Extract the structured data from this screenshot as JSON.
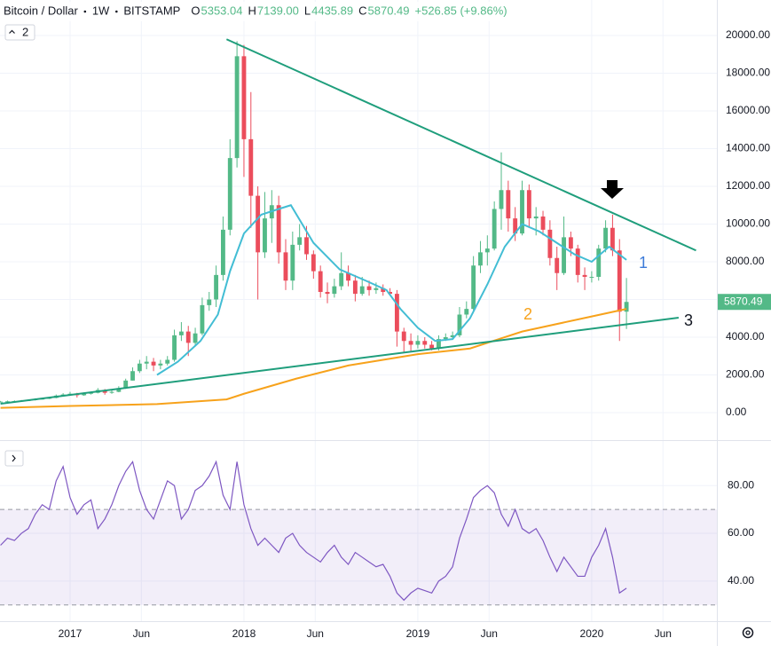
{
  "chart_data": {
    "type": "candlestick",
    "title": "Bitcoin / Dollar",
    "interval": "1W",
    "exchange": "BITSTAMP",
    "ohlc": [
      {
        "label": "O",
        "value": "5353.04"
      },
      {
        "label": "H",
        "value": "7139.00"
      },
      {
        "label": "L",
        "value": "4435.89"
      },
      {
        "label": "C",
        "value": "5870.49"
      }
    ],
    "change": "+526.85 (+9.86%)",
    "indicator_button": "2",
    "annotations": [
      "1",
      "2",
      "3"
    ],
    "up_color": "#53b987",
    "down_color": "#eb4d5c",
    "xlim": [
      2016.597,
      2020.72
    ],
    "xticks": [
      {
        "value": 2017,
        "label": "2017"
      },
      {
        "value": 2017.41,
        "label": "Jun"
      },
      {
        "value": 2018,
        "label": "2018"
      },
      {
        "value": 2018.41,
        "label": "Jun"
      },
      {
        "value": 2019,
        "label": "2019"
      },
      {
        "value": 2019.41,
        "label": "Jun"
      },
      {
        "value": 2020,
        "label": "2020"
      },
      {
        "value": 2020.41,
        "label": "Jun"
      }
    ],
    "ylim": [
      -1412,
      21882
    ],
    "yticks": [
      {
        "value": 0,
        "label": "0.00"
      },
      {
        "value": 2000,
        "label": "2000.00"
      },
      {
        "value": 4000,
        "label": "4000.00"
      },
      {
        "value": 6000,
        "label": "6000.00"
      },
      {
        "value": 8000,
        "label": "8000.00"
      },
      {
        "value": 10000,
        "label": "10000.00"
      },
      {
        "value": 12000,
        "label": "12000.00"
      },
      {
        "value": 14000,
        "label": "14000.00"
      },
      {
        "value": 16000,
        "label": "16000.00"
      },
      {
        "value": 18000,
        "label": "18000.00"
      },
      {
        "value": 20000,
        "label": "20000.00"
      }
    ],
    "grid": true,
    "x": [
      2016.6,
      2016.64,
      2016.68,
      2016.72,
      2016.76,
      2016.8,
      2016.84,
      2016.88,
      2016.92,
      2016.96,
      2017,
      2017.04,
      2017.08,
      2017.12,
      2017.16,
      2017.2,
      2017.24,
      2017.28,
      2017.32,
      2017.36,
      2017.4,
      2017.44,
      2017.48,
      2017.52,
      2017.56,
      2017.6,
      2017.64,
      2017.68,
      2017.72,
      2017.76,
      2017.8,
      2017.84,
      2017.88,
      2017.92,
      2017.96,
      2018,
      2018.04,
      2018.08,
      2018.12,
      2018.16,
      2018.2,
      2018.24,
      2018.28,
      2018.32,
      2018.36,
      2018.4,
      2018.44,
      2018.48,
      2018.52,
      2018.56,
      2018.6,
      2018.64,
      2018.68,
      2018.72,
      2018.76,
      2018.8,
      2018.84,
      2018.88,
      2018.92,
      2018.96,
      2019,
      2019.04,
      2019.08,
      2019.12,
      2019.16,
      2019.2,
      2019.24,
      2019.28,
      2019.32,
      2019.36,
      2019.4,
      2019.44,
      2019.48,
      2019.52,
      2019.56,
      2019.6,
      2019.64,
      2019.68,
      2019.72,
      2019.76,
      2019.8,
      2019.84,
      2019.88,
      2019.92,
      2019.96,
      2020,
      2020.04,
      2020.08,
      2020.12,
      2020.16,
      2020.2
    ],
    "open": [
      560,
      580,
      600,
      610,
      630,
      660,
      710,
      740,
      780,
      900,
      960,
      1000,
      920,
      1000,
      1050,
      1200,
      1050,
      1100,
      1300,
      1700,
      2200,
      2600,
      2700,
      2500,
      2600,
      2800,
      4100,
      4300,
      3700,
      4200,
      5700,
      6000,
      7300,
      9700,
      13500,
      18900,
      14500,
      11500,
      8500,
      10300,
      11000,
      8500,
      7000,
      8900,
      9300,
      8400,
      7500,
      6400,
      6300,
      6700,
      7400,
      7000,
      6300,
      6700,
      6500,
      6600,
      6400,
      6300,
      4300,
      3800,
      3600,
      3800,
      3600,
      3400,
      3900,
      4000,
      4100,
      5200,
      5500,
      7800,
      8500,
      8700,
      10800,
      11800,
      10300,
      9500,
      11800,
      10300,
      10400,
      9700,
      8200,
      7400,
      9300,
      8700,
      7300,
      7200,
      7200,
      8700,
      9800,
      8600,
      5353.04
    ],
    "high": [
      620,
      640,
      650,
      670,
      700,
      760,
      790,
      830,
      960,
      1030,
      1100,
      1050,
      1070,
      1120,
      1300,
      1250,
      1180,
      1400,
      1800,
      2400,
      2800,
      3000,
      2900,
      2800,
      3000,
      4400,
      4800,
      4600,
      4500,
      6100,
      6400,
      7800,
      10400,
      14500,
      19700,
      19500,
      17000,
      12000,
      11700,
      11800,
      11500,
      9200,
      9600,
      10000,
      9900,
      8600,
      7800,
      6900,
      7100,
      8500,
      7800,
      7300,
      7200,
      7000,
      6900,
      6800,
      6600,
      6500,
      4500,
      4200,
      4100,
      4000,
      3800,
      4100,
      4200,
      4300,
      5600,
      5900,
      8300,
      9100,
      9400,
      11200,
      13800,
      12300,
      10900,
      12300,
      12100,
      10900,
      10700,
      10200,
      8800,
      10400,
      9600,
      8900,
      7700,
      7500,
      8900,
      10200,
      10500,
      9200,
      7139
    ],
    "low": [
      540,
      560,
      580,
      590,
      610,
      640,
      690,
      720,
      760,
      860,
      900,
      800,
      890,
      960,
      1020,
      950,
      1000,
      1080,
      1260,
      1700,
      2100,
      2300,
      2200,
      2300,
      2500,
      2700,
      3800,
      3000,
      3500,
      4100,
      5400,
      5600,
      7000,
      9400,
      13000,
      12500,
      9800,
      6000,
      8200,
      9000,
      7900,
      6500,
      6500,
      8600,
      8100,
      7100,
      6100,
      5800,
      6100,
      6500,
      6700,
      5900,
      6200,
      6200,
      6300,
      6200,
      6200,
      3500,
      3200,
      3200,
      3400,
      3400,
      3300,
      3300,
      3800,
      3900,
      4000,
      5000,
      5400,
      7400,
      7800,
      8600,
      9700,
      9600,
      9100,
      9400,
      9800,
      9400,
      9400,
      7800,
      6500,
      7300,
      8300,
      6900,
      6500,
      6900,
      7000,
      8500,
      8300,
      3800,
      4435.89
    ],
    "close": [
      580,
      600,
      610,
      630,
      660,
      710,
      740,
      780,
      900,
      960,
      1000,
      920,
      1000,
      1050,
      1200,
      1050,
      1100,
      1300,
      1700,
      2200,
      2600,
      2700,
      2500,
      2600,
      2800,
      4100,
      4300,
      3700,
      4200,
      5700,
      6000,
      7300,
      9700,
      13500,
      18900,
      14500,
      11500,
      8500,
      10300,
      11000,
      8500,
      7000,
      8900,
      9300,
      8400,
      7500,
      6400,
      6300,
      6700,
      7400,
      7000,
      6300,
      6700,
      6500,
      6600,
      6400,
      6300,
      4300,
      3800,
      3600,
      3800,
      3600,
      3400,
      3900,
      4000,
      4100,
      5200,
      5500,
      7800,
      8500,
      8700,
      10800,
      11800,
      10300,
      9500,
      11800,
      10300,
      10400,
      9700,
      8200,
      7400,
      9300,
      8700,
      7300,
      7200,
      7200,
      8700,
      9800,
      8600,
      5353.04,
      5870.49
    ],
    "lines": [
      {
        "color": "#42bdd4",
        "x": [
          2017.5,
          2017.62,
          2017.75,
          2017.85,
          2017.92,
          2018,
          2018.1,
          2018.2,
          2018.27,
          2018.4,
          2018.55,
          2018.7,
          2018.82,
          2018.9,
          2019,
          2019.1,
          2019.2,
          2019.3,
          2019.4,
          2019.5,
          2019.6,
          2019.7,
          2019.8,
          2019.9,
          2020,
          2020.1,
          2020.2
        ],
        "values": [
          2000,
          2700,
          3800,
          5200,
          7500,
          9500,
          10500,
          10800,
          11000,
          9000,
          7600,
          7000,
          6500,
          5500,
          4500,
          3800,
          3900,
          5000,
          6800,
          8800,
          10000,
          9600,
          9000,
          8400,
          8000,
          8800,
          8100
        ]
      },
      {
        "color": "#f7a21b",
        "x": [
          2016.6,
          2017,
          2017.5,
          2017.9,
          2018,
          2018.3,
          2018.6,
          2019,
          2019.3,
          2019.6,
          2020,
          2020.2
        ],
        "values": [
          250,
          350,
          450,
          700,
          1000,
          1800,
          2500,
          3100,
          3400,
          4300,
          5100,
          5500
        ]
      }
    ],
    "trendlines": [
      {
        "color": "#1f9e7c",
        "x": [
          2017.9,
          2020.6
        ],
        "values": [
          19800,
          8600
        ]
      },
      {
        "color": "#1f9e7c",
        "x": [
          2016.6,
          2020.5
        ],
        "values": [
          470,
          5035
        ]
      }
    ],
    "rsi": {
      "type": "line",
      "color": "#7e57c2",
      "ylim": [
        23.2,
        98.7
      ],
      "yticks": [
        {
          "value": 40,
          "label": "40.00"
        },
        {
          "value": 60,
          "label": "60.00"
        },
        {
          "value": 80,
          "label": "80.00"
        }
      ],
      "band": [
        30,
        70
      ],
      "values": [
        55,
        58,
        57,
        60,
        62,
        68,
        72,
        70,
        82,
        88,
        75,
        68,
        72,
        74,
        62,
        66,
        72,
        80,
        86,
        90,
        78,
        70,
        66,
        74,
        82,
        80,
        66,
        70,
        78,
        80,
        84,
        90,
        76,
        70,
        90,
        72,
        62,
        55,
        58,
        55,
        52,
        58,
        60,
        55,
        52,
        50,
        48,
        52,
        55,
        50,
        47,
        52,
        50,
        48,
        46,
        47,
        42,
        35,
        32,
        35,
        37,
        36,
        35,
        40,
        42,
        46,
        58,
        66,
        75,
        78,
        80,
        77,
        68,
        63,
        70,
        62,
        60,
        62,
        57,
        50,
        44,
        50,
        46,
        42,
        42,
        50,
        55,
        62,
        50,
        35,
        37
      ]
    }
  }
}
